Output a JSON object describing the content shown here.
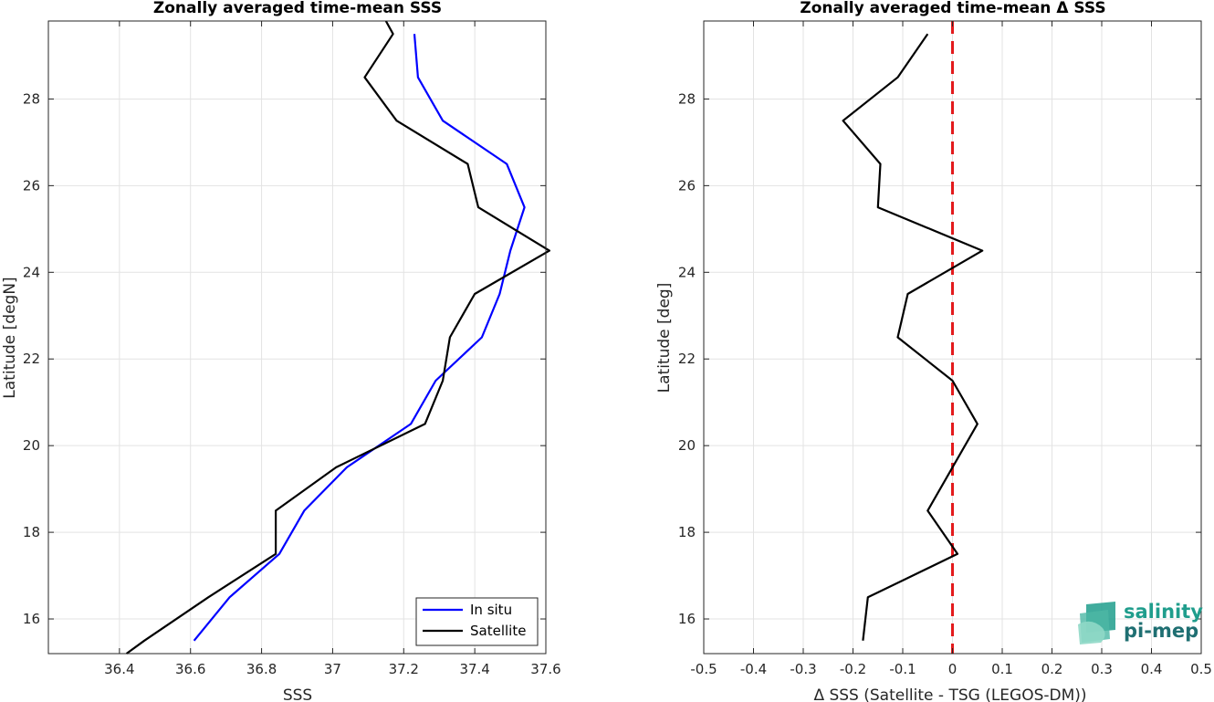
{
  "chart_data": [
    {
      "type": "line",
      "title": "Zonally averaged time-mean SSS",
      "xlabel": "SSS",
      "ylabel": "Latitude [degN]",
      "xlim": [
        36.2,
        37.6
      ],
      "ylim": [
        15.2,
        29.8
      ],
      "xticks": [
        "36.4",
        "36.6",
        "36.8",
        "37",
        "37.2",
        "37.4",
        "37.6"
      ],
      "yticks": [
        "16",
        "18",
        "20",
        "22",
        "24",
        "26",
        "28"
      ],
      "grid": true,
      "legend": "bottom-right",
      "series": [
        {
          "name": "In situ",
          "color": "#0000ff",
          "x": [
            36.61,
            36.71,
            36.85,
            36.92,
            37.04,
            37.22,
            37.29,
            37.42,
            37.47,
            37.5,
            37.54,
            37.49,
            37.31,
            37.24,
            37.23
          ],
          "y": [
            15.5,
            16.5,
            17.5,
            18.5,
            19.5,
            20.5,
            21.5,
            22.5,
            23.5,
            24.5,
            25.5,
            26.5,
            27.5,
            28.5,
            29.5
          ]
        },
        {
          "name": "Satellite",
          "color": "#000000",
          "x": [
            36.42,
            36.47,
            36.65,
            36.84,
            36.84,
            37.01,
            37.26,
            37.31,
            37.33,
            37.4,
            37.61,
            37.41,
            37.38,
            37.18,
            37.09,
            37.17,
            37.15
          ],
          "y": [
            15.2,
            15.5,
            16.5,
            17.5,
            18.5,
            19.5,
            20.5,
            21.5,
            22.5,
            23.5,
            24.5,
            25.5,
            26.5,
            27.5,
            28.5,
            29.5,
            29.8
          ]
        }
      ]
    },
    {
      "type": "line",
      "title": "Zonally averaged time-mean Δ SSS",
      "xlabel": "Δ SSS (Satellite - TSG (LEGOS-DM))",
      "ylabel": "Latitude [deg]",
      "xlim": [
        -0.5,
        0.5
      ],
      "ylim": [
        15.2,
        29.8
      ],
      "xticks": [
        "-0.5",
        "-0.4",
        "-0.3",
        "-0.2",
        "-0.1",
        "0",
        "0.1",
        "0.2",
        "0.3",
        "0.4",
        "0.5"
      ],
      "yticks": [
        "16",
        "18",
        "20",
        "22",
        "24",
        "26",
        "28"
      ],
      "grid": true,
      "series": [
        {
          "color": "#000000",
          "x": [
            -0.18,
            -0.17,
            0.01,
            -0.05,
            0.05,
            0.0,
            -0.11,
            -0.09,
            0.06,
            -0.15,
            -0.145,
            -0.22,
            -0.11,
            -0.05
          ],
          "y": [
            15.5,
            16.5,
            17.5,
            18.5,
            20.5,
            21.5,
            22.5,
            23.5,
            24.5,
            25.5,
            26.5,
            27.5,
            28.5,
            29.5
          ]
        }
      ],
      "reference_line": {
        "x": 0,
        "color": "#e31a1c",
        "style": "dashed"
      }
    }
  ],
  "logo": {
    "line1": "salinity",
    "line2": "pi-mep",
    "color": "#1f9d8c"
  }
}
